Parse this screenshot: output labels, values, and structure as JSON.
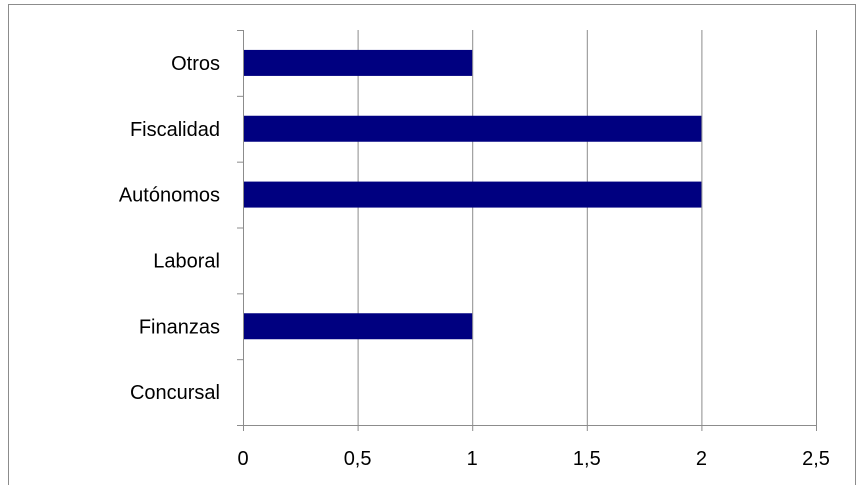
{
  "chart_data": {
    "type": "bar",
    "orientation": "horizontal",
    "title": "",
    "xlabel": "",
    "ylabel": "",
    "categories": [
      "Concursal",
      "Finanzas",
      "Laboral",
      "Autónomos",
      "Fiscalidad",
      "Otros"
    ],
    "values": [
      0,
      1,
      0,
      2,
      2,
      1
    ],
    "xlim": [
      0,
      2.5
    ],
    "xticks": [
      0,
      0.5,
      1,
      1.5,
      2,
      2.5
    ],
    "xtick_labels": [
      "0",
      "0,5",
      "1",
      "1,5",
      "2",
      "2,5"
    ],
    "grid": true,
    "legend": "none",
    "bar_color": "#000080",
    "grid_color": "#8c8c8c"
  }
}
